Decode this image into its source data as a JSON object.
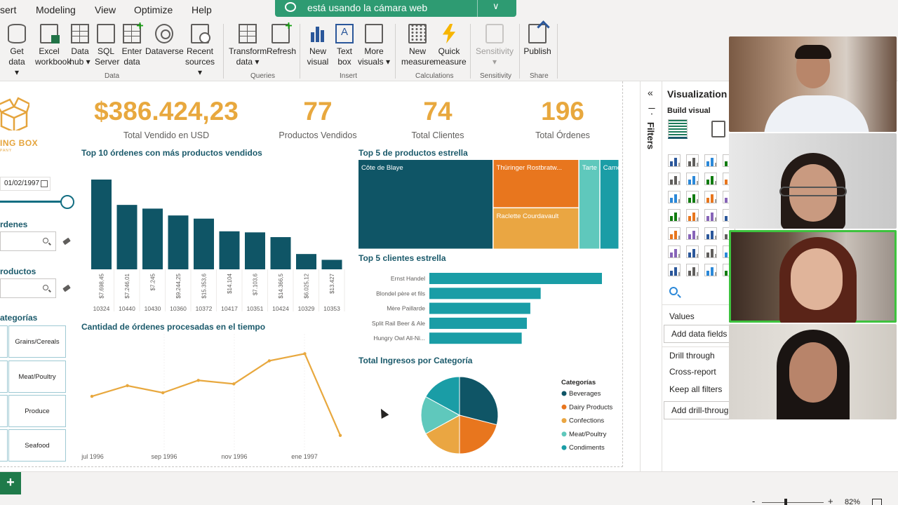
{
  "menu": {
    "items": [
      "sert",
      "Modeling",
      "View",
      "Optimize",
      "Help"
    ]
  },
  "notification": {
    "text": "está usando la cámara web",
    "chevron": "∨"
  },
  "ribbon": {
    "get_data": [
      "Get",
      "data ▾"
    ],
    "excel": [
      "Excel",
      "workbook"
    ],
    "data_hub": [
      "Data",
      "hub ▾"
    ],
    "sql": [
      "SQL",
      "Server"
    ],
    "enter_data": [
      "Enter",
      "data"
    ],
    "dataverse": [
      "Dataverse"
    ],
    "recent_sources": [
      "Recent",
      "sources ▾"
    ],
    "group_data": "Data",
    "transform": [
      "Transform",
      "data ▾"
    ],
    "refresh": [
      "Refresh"
    ],
    "group_queries": "Queries",
    "new_visual": [
      "New",
      "visual"
    ],
    "text_box": [
      "Text",
      "box"
    ],
    "more_visuals": [
      "More",
      "visuals ▾"
    ],
    "group_insert": "Insert",
    "new_measure": [
      "New",
      "measure"
    ],
    "quick_measure": [
      "Quick",
      "measure"
    ],
    "group_calculations": "Calculations",
    "sensitivity": [
      "Sensitivity",
      "▾"
    ],
    "group_sensitivity": "Sensitivity",
    "publish": [
      "Publish"
    ],
    "group_share": "Share"
  },
  "report": {
    "logo_text": "ING BOX",
    "logo_sub": "PANY",
    "kpis": [
      {
        "value": "$386.424,23",
        "label": "Total Vendido en USD"
      },
      {
        "value": "77",
        "label": "Productos Vendidos"
      },
      {
        "value": "74",
        "label": "Total Clientes"
      },
      {
        "value": "196",
        "label": "Total Órdenes"
      }
    ],
    "date_filter": "01/02/1997",
    "slicer_ordenes": "rdenes",
    "slicer_productos": "roductos",
    "slicer_categorias": "ategorías",
    "category_tiles": [
      "Grains/Cereals",
      "Meat/Poultry",
      "Produce",
      "Seafood"
    ]
  },
  "chart_data": [
    {
      "type": "bar",
      "title": "Top 10 órdenes con más productos vendidos",
      "categories": [
        "10324",
        "10440",
        "10430",
        "10360",
        "10372",
        "10417",
        "10351",
        "10424",
        "10329",
        "10353"
      ],
      "values": [
        17,
        12.2,
        11.5,
        10.2,
        9.6,
        7.2,
        7,
        6.1,
        2.9,
        1.8
      ],
      "data_labels": [
        "$7.698,45",
        "$7.246,01",
        "$7.245",
        "$9.244,25",
        "$15.353,6",
        "$14.104",
        "$7.103,6",
        "$14.366,5",
        "$6.025,12",
        "$13.427"
      ],
      "color": "#0f5566"
    },
    {
      "type": "line",
      "title": "Cantidad de órdenes procesadas en el tiempo",
      "x_tick_labels": [
        "jul 1996",
        "sep 1996",
        "nov 1996",
        "ene 1997"
      ],
      "values": [
        14,
        17,
        15,
        18.5,
        17.5,
        24,
        26,
        3
      ],
      "ylim": [
        0,
        30
      ],
      "color": "#e8a83e"
    },
    {
      "type": "treemap",
      "title": "Top 5 de productos estrella",
      "items": [
        {
          "label": "Côte de Blaye",
          "value": 141396.7,
          "color": "#0f5566"
        },
        {
          "label": "Thüringer Rostbratw...",
          "value": 48384,
          "color": "#e8761e"
        },
        {
          "label": "Raclette Courdavault",
          "value": 41396,
          "color": "#eaa642"
        },
        {
          "label": "Tarte ...",
          "value": 21960,
          "color": "#5fc8bc"
        },
        {
          "label": "Came...",
          "value": 20000,
          "color": "#1a9da6"
        }
      ]
    },
    {
      "type": "bar",
      "orientation": "horizontal",
      "title": "Top 5 clientes estrella",
      "categories": [
        "Ernst Handel",
        "Blondel père et fils",
        "Mère Paillarde",
        "Split Rail Beer & Ale",
        "Hungry Owl All-Ni..."
      ],
      "values": [
        100,
        64.5,
        58.5,
        56.5,
        53.5
      ],
      "color": "#1a9da6"
    },
    {
      "type": "pie",
      "title": "Total Ingresos por Categoría",
      "legend_title": "Categorías",
      "legend_position": "right",
      "slices": [
        {
          "label": "Beverages",
          "value": 29,
          "color": "#0f5566"
        },
        {
          "label": "Dairy Products",
          "value": 21,
          "color": "#e8761e"
        },
        {
          "label": "Confections",
          "value": 17,
          "color": "#eaa642"
        },
        {
          "label": "Meat/Poultry",
          "value": 16,
          "color": "#5fc8bc"
        },
        {
          "label": "Condiments",
          "value": 17,
          "color": "#1a9da6"
        }
      ]
    }
  ],
  "visualizations": {
    "title": "Visualization",
    "build_visual": "Build visual",
    "values_label": "Values",
    "add_data_fields": "Add data fields h",
    "drill_through": "Drill through",
    "cross_report": "Cross-report",
    "keep_all_filters": "Keep all filters",
    "add_drill_through": "Add drill-throug"
  },
  "filters_pane": {
    "label": "Filters",
    "chevron": "«"
  },
  "status_bar": {
    "add_page": "+",
    "zoom_minus": "-",
    "zoom_plus": "+",
    "zoom_level": "82%"
  }
}
